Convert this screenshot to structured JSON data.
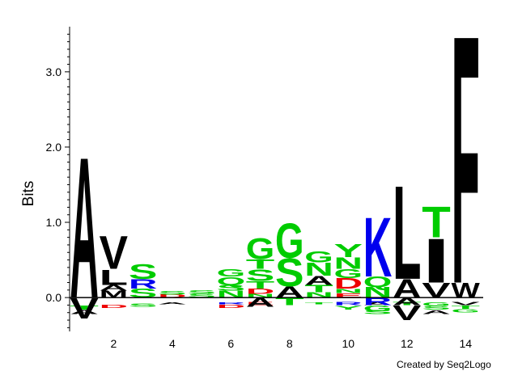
{
  "chart_data": {
    "type": "sequence-logo",
    "ylabel": "Bits",
    "ylim": [
      -0.45,
      3.6
    ],
    "xlim": [
      0.5,
      14.6
    ],
    "yticks": [
      0.0,
      1.0,
      2.0,
      3.0
    ],
    "ytick_labels": [
      "0.0",
      "1.0",
      "2.0",
      "3.0"
    ],
    "xticks": [
      2,
      4,
      6,
      8,
      10,
      12,
      14
    ],
    "xtick_labels": [
      "2",
      "4",
      "6",
      "8",
      "10",
      "12",
      "14"
    ],
    "color_scheme": {
      "hydrophobic": "#000000",
      "polar": "#00cc00",
      "basic": "#0000ee",
      "acidic": "#ee0000"
    },
    "residue_colors": {
      "A": "#000000",
      "V": "#000000",
      "L": "#000000",
      "I": "#000000",
      "M": "#000000",
      "F": "#000000",
      "W": "#000000",
      "P": "#000000",
      "G": "#00cc00",
      "S": "#00cc00",
      "T": "#00cc00",
      "Y": "#00cc00",
      "N": "#00cc00",
      "Q": "#00cc00",
      "C": "#00cc00",
      "K": "#0000ee",
      "R": "#0000ee",
      "H": "#0000ee",
      "D": "#ee0000",
      "E": "#ee0000"
    },
    "positions": [
      {
        "pos": 1,
        "letters": [
          [
            "A",
            1.93
          ]
        ],
        "below": [
          [
            "V",
            -0.28
          ]
        ]
      },
      {
        "pos": 2,
        "letters": [
          [
            "M",
            0.09
          ],
          [
            "A",
            0.08
          ],
          [
            "L",
            0.21
          ],
          [
            "V",
            0.45
          ]
        ],
        "below": []
      },
      {
        "pos": 3,
        "letters": [
          [
            "S",
            0.12
          ],
          [
            "R",
            0.13
          ],
          [
            "S",
            0.2
          ]
        ],
        "below": []
      },
      {
        "pos": 4,
        "letters": [
          [
            "D",
            0.04
          ],
          [
            "S",
            0.05
          ]
        ],
        "below": []
      },
      {
        "pos": 5,
        "letters": [
          [
            "S",
            0.05
          ],
          [
            "S",
            0.05
          ]
        ],
        "below": []
      },
      {
        "pos": 6,
        "letters": [
          [
            "N",
            0.09
          ],
          [
            "S",
            0.08
          ],
          [
            "Q",
            0.11
          ],
          [
            "G",
            0.1
          ]
        ],
        "below": []
      },
      {
        "pos": 7,
        "letters": [
          [
            "N",
            0.05
          ],
          [
            "D",
            0.07
          ],
          [
            "T",
            0.1
          ],
          [
            "S",
            0.16
          ],
          [
            "T",
            0.13
          ],
          [
            "G",
            0.29
          ]
        ],
        "below": [
          [
            "A",
            -0.12
          ]
        ]
      },
      {
        "pos": 8,
        "letters": [
          [
            "A",
            0.15
          ],
          [
            "S",
            0.38
          ],
          [
            "G",
            0.47
          ]
        ],
        "below": [
          [
            "T",
            -0.1
          ]
        ]
      },
      {
        "pos": 9,
        "letters": [
          [
            "N",
            0.07
          ],
          [
            "T",
            0.1
          ],
          [
            "A",
            0.12
          ],
          [
            "N",
            0.18
          ],
          [
            "G",
            0.15
          ]
        ],
        "below": []
      },
      {
        "pos": 10,
        "letters": [
          [
            "E",
            0.06
          ],
          [
            "N",
            0.06
          ],
          [
            "D",
            0.14
          ],
          [
            "G",
            0.12
          ],
          [
            "N",
            0.16
          ],
          [
            "Y",
            0.18
          ]
        ],
        "below": []
      },
      {
        "pos": 11,
        "letters": [
          [
            "N",
            0.14
          ],
          [
            "Q",
            0.14
          ],
          [
            "K",
            0.81
          ]
        ],
        "below": [
          [
            "R",
            -0.1
          ],
          [
            "G",
            -0.08
          ]
        ]
      },
      {
        "pos": 12,
        "letters": [
          [
            "A",
            0.25
          ],
          [
            "L",
            1.28
          ]
        ],
        "below": [
          [
            "A",
            -0.1
          ],
          [
            "V",
            -0.2
          ]
        ]
      },
      {
        "pos": 13,
        "letters": [
          [
            "V",
            0.2
          ],
          [
            "I",
            0.6
          ],
          [
            "T",
            0.42
          ]
        ],
        "below": []
      },
      {
        "pos": 14,
        "letters": [
          [
            "W",
            0.2
          ],
          [
            "F",
            3.4
          ]
        ],
        "below": []
      }
    ],
    "noise": [
      {
        "pos": 1,
        "items": [
          [
            "T",
            -0.1,
            0.06
          ],
          [
            "A",
            -0.16,
            0.06
          ]
        ]
      },
      {
        "pos": 2,
        "items": [
          [
            "D",
            -0.1,
            0.04
          ]
        ]
      },
      {
        "pos": 3,
        "items": [
          [
            "S",
            -0.08,
            0.04
          ]
        ]
      },
      {
        "pos": 4,
        "items": [
          [
            "A",
            -0.06,
            0.03
          ]
        ]
      },
      {
        "pos": 6,
        "items": [
          [
            "R",
            -0.06,
            0.03
          ],
          [
            "D",
            -0.1,
            0.04
          ]
        ]
      },
      {
        "pos": 7,
        "items": [
          [
            "E",
            -0.06,
            0.04
          ]
        ]
      },
      {
        "pos": 9,
        "items": [
          [
            "T",
            -0.06,
            0.03
          ]
        ]
      },
      {
        "pos": 10,
        "items": [
          [
            "R",
            -0.06,
            0.04
          ],
          [
            "Y",
            -0.11,
            0.05
          ]
        ]
      },
      {
        "pos": 11,
        "items": [
          [
            "A",
            -0.06,
            0.04
          ],
          [
            "S",
            -0.16,
            0.06
          ]
        ]
      },
      {
        "pos": 12,
        "items": [
          [
            "T",
            -0.06,
            0.04
          ]
        ]
      },
      {
        "pos": 13,
        "items": [
          [
            "G",
            -0.06,
            0.05
          ],
          [
            "S",
            -0.11,
            0.05
          ],
          [
            "A",
            -0.17,
            0.05
          ]
        ]
      },
      {
        "pos": 14,
        "items": [
          [
            "V",
            -0.06,
            0.04
          ],
          [
            "T",
            -0.11,
            0.04
          ],
          [
            "G",
            -0.16,
            0.04
          ]
        ]
      }
    ]
  },
  "credit": "Created by Seq2Logo"
}
